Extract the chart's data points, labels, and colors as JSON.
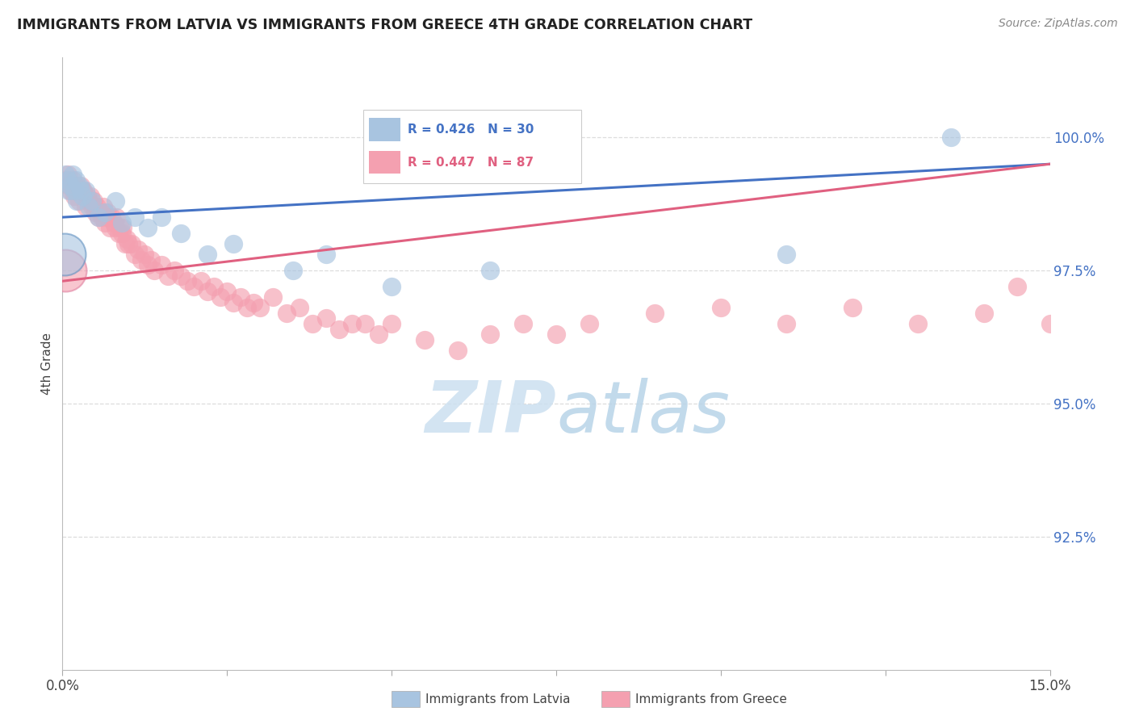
{
  "title": "IMMIGRANTS FROM LATVIA VS IMMIGRANTS FROM GREECE 4TH GRADE CORRELATION CHART",
  "source": "Source: ZipAtlas.com",
  "ylabel": "4th Grade",
  "ytick_labels": [
    "92.5%",
    "95.0%",
    "97.5%",
    "100.0%"
  ],
  "ytick_values": [
    92.5,
    95.0,
    97.5,
    100.0
  ],
  "xlim": [
    0.0,
    15.0
  ],
  "ylim": [
    90.0,
    101.5
  ],
  "legend_latvia": "Immigrants from Latvia",
  "legend_greece": "Immigrants from Greece",
  "r_latvia": 0.426,
  "n_latvia": 30,
  "r_greece": 0.447,
  "n_greece": 87,
  "color_latvia": "#a8c4e0",
  "color_greece": "#f4a0b0",
  "line_color_latvia": "#4472c4",
  "line_color_greece": "#e06080",
  "watermark_color": "#cce0f0",
  "grid_color": "#dddddd",
  "ytick_color": "#4472c4",
  "title_color": "#222222",
  "source_color": "#888888"
}
